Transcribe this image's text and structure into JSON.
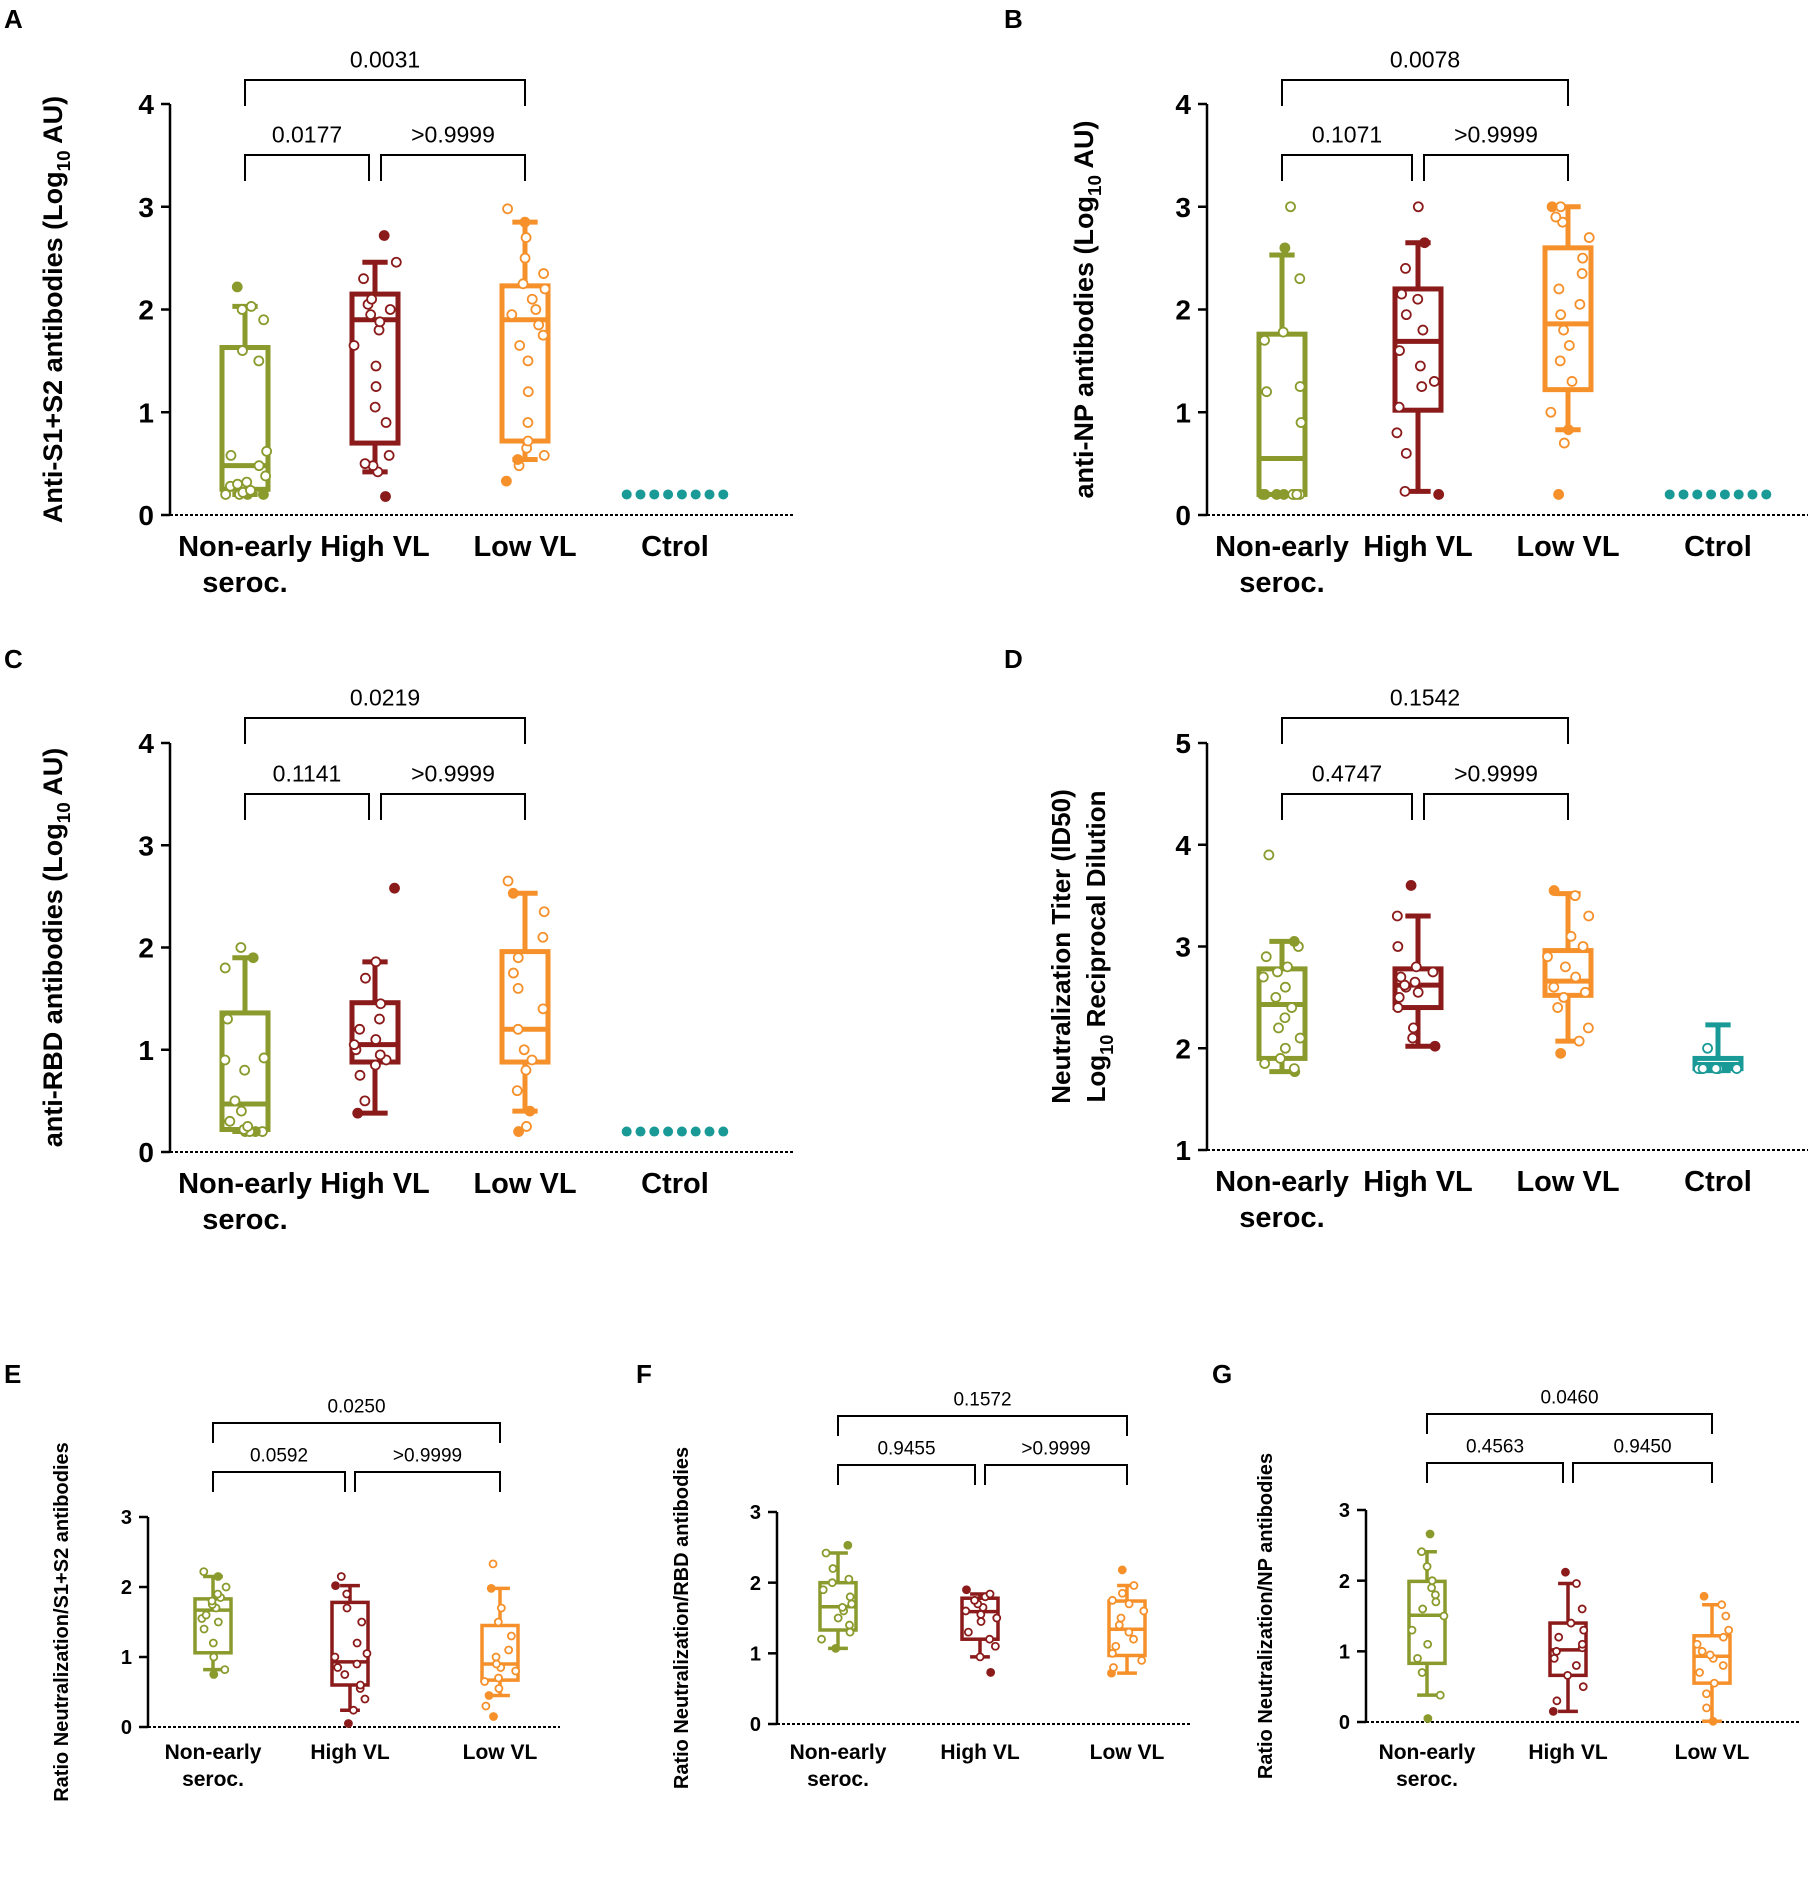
{
  "colors": {
    "non_early": "#8a9a2c",
    "high_vl": "#8b1a1a",
    "low_vl": "#f5902a",
    "ctrol": "#1a9a96",
    "axis": "#000000"
  },
  "chart_data": [
    {
      "panel": "A",
      "type": "box",
      "ylabel": "Anti-S1+S2 antibodies  (Log10 AU)",
      "ylabel_parts": {
        "pre": "Anti-S1+S2 antibodies  (Log",
        "sub": "10",
        "post": " AU)"
      },
      "ylim": [
        0,
        4
      ],
      "yticks": [
        "0",
        "1",
        "2",
        "3",
        "4"
      ],
      "categories": [
        [
          "Non-early",
          "seroc."
        ],
        [
          "High VL"
        ],
        [
          "Low VL"
        ],
        [
          "Ctrol"
        ]
      ],
      "series": [
        {
          "name": "Non-early seroc.",
          "color_key": "non_early",
          "q1": 0.25,
          "median": 0.48,
          "q3": 1.63,
          "min": 0.2,
          "max": 2.03,
          "points": [
            0.2,
            0.2,
            0.2,
            0.2,
            0.22,
            0.24,
            0.28,
            0.3,
            0.32,
            0.38,
            0.48,
            0.58,
            0.62,
            1.5,
            1.6,
            1.9,
            2.0,
            2.03,
            2.22
          ]
        },
        {
          "name": "High VL",
          "color_key": "high_vl",
          "q1": 0.7,
          "median": 1.9,
          "q3": 2.15,
          "min": 0.42,
          "max": 2.46,
          "points": [
            0.18,
            0.42,
            0.48,
            0.5,
            0.58,
            0.9,
            1.05,
            1.25,
            1.45,
            1.65,
            1.8,
            1.88,
            1.95,
            2.0,
            2.05,
            2.1,
            2.3,
            2.46,
            2.72
          ]
        },
        {
          "name": "Low VL",
          "color_key": "low_vl",
          "q1": 0.72,
          "median": 1.9,
          "q3": 2.23,
          "min": 0.54,
          "max": 2.85,
          "points": [
            0.33,
            0.48,
            0.54,
            0.58,
            0.65,
            0.72,
            0.9,
            1.2,
            1.5,
            1.65,
            1.75,
            1.85,
            1.95,
            2.0,
            2.1,
            2.2,
            2.25,
            2.35,
            2.5,
            2.7,
            2.85,
            2.98
          ]
        },
        {
          "name": "Ctrol",
          "color_key": "ctrol",
          "flat": 0.2,
          "n": 8
        }
      ],
      "comparisons": [
        {
          "from": 0,
          "to": 1,
          "label": "0.0177",
          "level": 0
        },
        {
          "from": 1,
          "to": 2,
          "label": ">0.9999",
          "level": 0
        },
        {
          "from": 0,
          "to": 2,
          "label": "0.0031",
          "level": 1
        }
      ]
    },
    {
      "panel": "B",
      "type": "box",
      "ylabel": "anti-NP antibodies (Log10 AU)",
      "ylabel_parts": {
        "pre": "anti-NP antibodies (Log",
        "sub": "10",
        "post": " AU)"
      },
      "ylim": [
        0,
        4
      ],
      "yticks": [
        "0",
        "1",
        "2",
        "3",
        "4"
      ],
      "categories": [
        [
          "Non-early",
          "seroc."
        ],
        [
          "High VL"
        ],
        [
          "Low VL"
        ],
        [
          "Ctrol"
        ]
      ],
      "series": [
        {
          "name": "Non-early seroc.",
          "color_key": "non_early",
          "q1": 0.2,
          "median": 0.55,
          "q3": 1.76,
          "min": 0.2,
          "max": 2.53,
          "points": [
            0.2,
            0.2,
            0.2,
            0.2,
            0.2,
            0.2,
            0.2,
            0.2,
            0.9,
            1.2,
            1.25,
            1.7,
            1.78,
            2.3,
            2.6,
            3.0
          ]
        },
        {
          "name": "High VL",
          "color_key": "high_vl",
          "q1": 1.02,
          "median": 1.69,
          "q3": 2.2,
          "min": 0.23,
          "max": 2.65,
          "points": [
            0.2,
            0.23,
            0.6,
            0.8,
            1.05,
            1.25,
            1.3,
            1.45,
            1.6,
            1.8,
            1.95,
            2.1,
            2.15,
            2.4,
            2.65,
            3.0
          ]
        },
        {
          "name": "Low VL",
          "color_key": "low_vl",
          "q1": 1.22,
          "median": 1.86,
          "q3": 2.6,
          "min": 0.83,
          "max": 3.0,
          "points": [
            0.2,
            0.7,
            0.83,
            1.0,
            1.3,
            1.5,
            1.65,
            1.8,
            1.95,
            2.05,
            2.2,
            2.35,
            2.5,
            2.7,
            2.85,
            3.0,
            3.0,
            2.9
          ]
        },
        {
          "name": "Ctrol",
          "color_key": "ctrol",
          "flat": 0.2,
          "n": 8
        }
      ],
      "comparisons": [
        {
          "from": 0,
          "to": 1,
          "label": "0.1071",
          "level": 0
        },
        {
          "from": 1,
          "to": 2,
          "label": ">0.9999",
          "level": 0
        },
        {
          "from": 0,
          "to": 2,
          "label": "0.0078",
          "level": 1
        }
      ]
    },
    {
      "panel": "C",
      "type": "box",
      "ylabel": "anti-RBD antibodies (Log10 AU)",
      "ylabel_parts": {
        "pre": "anti-RBD antibodies (Log",
        "sub": "10",
        "post": " AU)"
      },
      "ylim": [
        0,
        4
      ],
      "yticks": [
        "0",
        "1",
        "2",
        "3",
        "4"
      ],
      "categories": [
        [
          "Non-early",
          "seroc."
        ],
        [
          "High VL"
        ],
        [
          "Low VL"
        ],
        [
          "Ctrol"
        ]
      ],
      "series": [
        {
          "name": "Non-early seroc.",
          "color_key": "non_early",
          "q1": 0.22,
          "median": 0.47,
          "q3": 1.36,
          "min": 0.2,
          "max": 1.9,
          "points": [
            0.2,
            0.2,
            0.2,
            0.2,
            0.22,
            0.25,
            0.3,
            0.4,
            0.5,
            0.8,
            0.92,
            0.9,
            1.3,
            1.8,
            1.9,
            2.0
          ]
        },
        {
          "name": "High VL",
          "color_key": "high_vl",
          "q1": 0.88,
          "median": 1.05,
          "q3": 1.46,
          "min": 0.38,
          "max": 1.86,
          "points": [
            0.38,
            0.5,
            0.75,
            0.85,
            0.9,
            0.95,
            1.0,
            1.05,
            1.1,
            1.2,
            1.3,
            1.45,
            1.7,
            1.86,
            2.58
          ]
        },
        {
          "name": "Low VL",
          "color_key": "low_vl",
          "q1": 0.88,
          "median": 1.2,
          "q3": 1.96,
          "min": 0.4,
          "max": 2.53,
          "points": [
            0.2,
            0.25,
            0.4,
            0.6,
            0.8,
            0.9,
            1.0,
            1.2,
            1.4,
            1.6,
            1.75,
            1.9,
            2.1,
            2.35,
            2.53,
            2.65
          ]
        },
        {
          "name": "Ctrol",
          "color_key": "ctrol",
          "flat": 0.2,
          "n": 8
        }
      ],
      "comparisons": [
        {
          "from": 0,
          "to": 1,
          "label": "0.1141",
          "level": 0
        },
        {
          "from": 1,
          "to": 2,
          "label": ">0.9999",
          "level": 0
        },
        {
          "from": 0,
          "to": 2,
          "label": "0.0219",
          "level": 1
        }
      ]
    },
    {
      "panel": "D",
      "type": "box",
      "ylabel": "Neutralization Titer (ID50) Log10 Reciprocal Dilution",
      "ylabel_line1": "Neutralization Titer (ID50)",
      "ylabel_parts": {
        "pre": "Log",
        "sub": "10",
        "post": " Reciprocal Dilution"
      },
      "ylim": [
        1,
        5
      ],
      "yticks": [
        "1",
        "2",
        "3",
        "4",
        "5"
      ],
      "categories": [
        [
          "Non-early",
          "seroc."
        ],
        [
          "High VL"
        ],
        [
          "Low VL"
        ],
        [
          "Ctrol"
        ]
      ],
      "series": [
        {
          "name": "Non-early seroc.",
          "color_key": "non_early",
          "q1": 1.9,
          "median": 2.43,
          "q3": 2.78,
          "min": 1.77,
          "max": 3.05,
          "points": [
            1.77,
            1.8,
            1.85,
            1.9,
            2.0,
            2.1,
            2.2,
            2.3,
            2.4,
            2.5,
            2.6,
            2.7,
            2.75,
            2.8,
            2.9,
            3.0,
            3.05,
            3.9
          ]
        },
        {
          "name": "High VL",
          "color_key": "high_vl",
          "q1": 2.4,
          "median": 2.62,
          "q3": 2.78,
          "min": 2.02,
          "max": 3.3,
          "points": [
            2.02,
            2.1,
            2.2,
            2.4,
            2.5,
            2.55,
            2.6,
            2.62,
            2.65,
            2.7,
            2.75,
            2.8,
            3.0,
            3.3,
            3.6
          ]
        },
        {
          "name": "Low VL",
          "color_key": "low_vl",
          "q1": 2.52,
          "median": 2.66,
          "q3": 2.96,
          "min": 2.07,
          "max": 3.52,
          "points": [
            1.95,
            2.07,
            2.2,
            2.4,
            2.5,
            2.55,
            2.6,
            2.7,
            2.8,
            2.9,
            3.0,
            3.1,
            3.3,
            3.5,
            3.55
          ]
        },
        {
          "name": "Ctrol",
          "color_key": "ctrol",
          "q1": 1.8,
          "median": 1.84,
          "q3": 1.9,
          "min": 1.78,
          "max": 2.23,
          "points": [
            1.8,
            1.8,
            1.8,
            1.8,
            1.8,
            1.8,
            1.8,
            2.0
          ]
        }
      ],
      "comparisons": [
        {
          "from": 0,
          "to": 1,
          "label": "0.4747",
          "level": 0
        },
        {
          "from": 1,
          "to": 2,
          "label": ">0.9999",
          "level": 0
        },
        {
          "from": 0,
          "to": 2,
          "label": "0.1542",
          "level": 1
        }
      ]
    },
    {
      "panel": "E",
      "type": "box",
      "ylabel": "Ratio Neutralization/S1+S2 antibodies",
      "ylim": [
        0,
        3
      ],
      "yticks": [
        "0",
        "1",
        "2",
        "3"
      ],
      "categories": [
        [
          "Non-early",
          "seroc."
        ],
        [
          "High VL"
        ],
        [
          "Low VL"
        ]
      ],
      "series": [
        {
          "name": "Non-early seroc.",
          "color_key": "non_early",
          "q1": 1.06,
          "median": 1.67,
          "q3": 1.83,
          "min": 0.82,
          "max": 2.15,
          "points": [
            0.75,
            0.82,
            1.0,
            1.2,
            1.4,
            1.5,
            1.55,
            1.6,
            1.7,
            1.75,
            1.8,
            1.85,
            1.9,
            2.0,
            2.15,
            2.22
          ]
        },
        {
          "name": "High VL",
          "color_key": "high_vl",
          "q1": 0.6,
          "median": 0.93,
          "q3": 1.78,
          "min": 0.24,
          "max": 2.02,
          "points": [
            0.05,
            0.24,
            0.4,
            0.55,
            0.6,
            0.75,
            0.85,
            0.9,
            1.0,
            1.05,
            1.2,
            1.5,
            1.7,
            1.9,
            2.02,
            2.15
          ]
        },
        {
          "name": "Low VL",
          "color_key": "low_vl",
          "q1": 0.67,
          "median": 0.9,
          "q3": 1.45,
          "min": 0.45,
          "max": 1.98,
          "points": [
            0.15,
            0.3,
            0.45,
            0.55,
            0.65,
            0.7,
            0.8,
            0.85,
            0.9,
            1.0,
            1.1,
            1.3,
            1.5,
            1.7,
            1.98,
            2.33
          ]
        }
      ],
      "comparisons": [
        {
          "from": 0,
          "to": 1,
          "label": "0.0592",
          "level": 0
        },
        {
          "from": 1,
          "to": 2,
          "label": ">0.9999",
          "level": 0
        },
        {
          "from": 0,
          "to": 2,
          "label": "0.0250",
          "level": 1
        }
      ]
    },
    {
      "panel": "F",
      "type": "box",
      "ylabel": "Ratio Neutralization/RBD antibodies",
      "ylim": [
        0,
        3
      ],
      "yticks": [
        "0",
        "1",
        "2",
        "3"
      ],
      "categories": [
        [
          "Non-early",
          "seroc."
        ],
        [
          "High VL"
        ],
        [
          "Low VL"
        ]
      ],
      "series": [
        {
          "name": "Non-early seroc.",
          "color_key": "non_early",
          "q1": 1.33,
          "median": 1.66,
          "q3": 2.0,
          "min": 1.07,
          "max": 2.42,
          "points": [
            1.07,
            1.2,
            1.3,
            1.4,
            1.5,
            1.6,
            1.65,
            1.7,
            1.8,
            1.9,
            2.0,
            2.05,
            2.2,
            2.42,
            2.53
          ]
        },
        {
          "name": "High VL",
          "color_key": "high_vl",
          "q1": 1.2,
          "median": 1.59,
          "q3": 1.78,
          "min": 0.95,
          "max": 1.84,
          "points": [
            0.73,
            0.95,
            1.1,
            1.2,
            1.3,
            1.45,
            1.5,
            1.55,
            1.6,
            1.65,
            1.7,
            1.75,
            1.8,
            1.84,
            1.9
          ]
        },
        {
          "name": "Low VL",
          "color_key": "low_vl",
          "q1": 0.97,
          "median": 1.34,
          "q3": 1.74,
          "min": 0.72,
          "max": 1.96,
          "points": [
            0.72,
            0.8,
            0.9,
            1.0,
            1.1,
            1.2,
            1.3,
            1.4,
            1.5,
            1.6,
            1.7,
            1.75,
            1.85,
            1.96,
            2.18
          ]
        }
      ],
      "comparisons": [
        {
          "from": 0,
          "to": 1,
          "label": "0.9455",
          "level": 0
        },
        {
          "from": 1,
          "to": 2,
          "label": ">0.9999",
          "level": 0
        },
        {
          "from": 0,
          "to": 2,
          "label": "0.1572",
          "level": 1
        }
      ]
    },
    {
      "panel": "G",
      "type": "box",
      "ylabel": "Ratio Neutralization/NP antibodies",
      "ylim": [
        0,
        3
      ],
      "yticks": [
        "0",
        "1",
        "2",
        "3"
      ],
      "categories": [
        [
          "Non-early",
          "seroc."
        ],
        [
          "High VL"
        ],
        [
          "Low VL"
        ]
      ],
      "series": [
        {
          "name": "Non-early seroc.",
          "color_key": "non_early",
          "q1": 0.83,
          "median": 1.51,
          "q3": 1.99,
          "min": 0.38,
          "max": 2.41,
          "points": [
            0.05,
            0.38,
            0.7,
            0.9,
            1.1,
            1.3,
            1.5,
            1.6,
            1.7,
            1.8,
            1.9,
            2.0,
            2.2,
            2.41,
            2.66
          ]
        },
        {
          "name": "High VL",
          "color_key": "high_vl",
          "q1": 0.66,
          "median": 1.02,
          "q3": 1.4,
          "min": 0.15,
          "max": 1.96,
          "points": [
            0.15,
            0.3,
            0.5,
            0.66,
            0.8,
            0.9,
            1.0,
            1.05,
            1.1,
            1.2,
            1.3,
            1.4,
            1.6,
            1.96,
            2.12
          ]
        },
        {
          "name": "Low VL",
          "color_key": "low_vl",
          "q1": 0.55,
          "median": 0.93,
          "q3": 1.22,
          "min": 0.01,
          "max": 1.66,
          "points": [
            0.01,
            0.2,
            0.4,
            0.55,
            0.7,
            0.8,
            0.9,
            0.95,
            1.0,
            1.1,
            1.2,
            1.3,
            1.5,
            1.66,
            1.78
          ]
        }
      ],
      "comparisons": [
        {
          "from": 0,
          "to": 1,
          "label": "0.4563",
          "level": 0
        },
        {
          "from": 1,
          "to": 2,
          "label": "0.9450",
          "level": 0
        },
        {
          "from": 0,
          "to": 2,
          "label": "0.0460",
          "level": 1
        }
      ]
    }
  ]
}
